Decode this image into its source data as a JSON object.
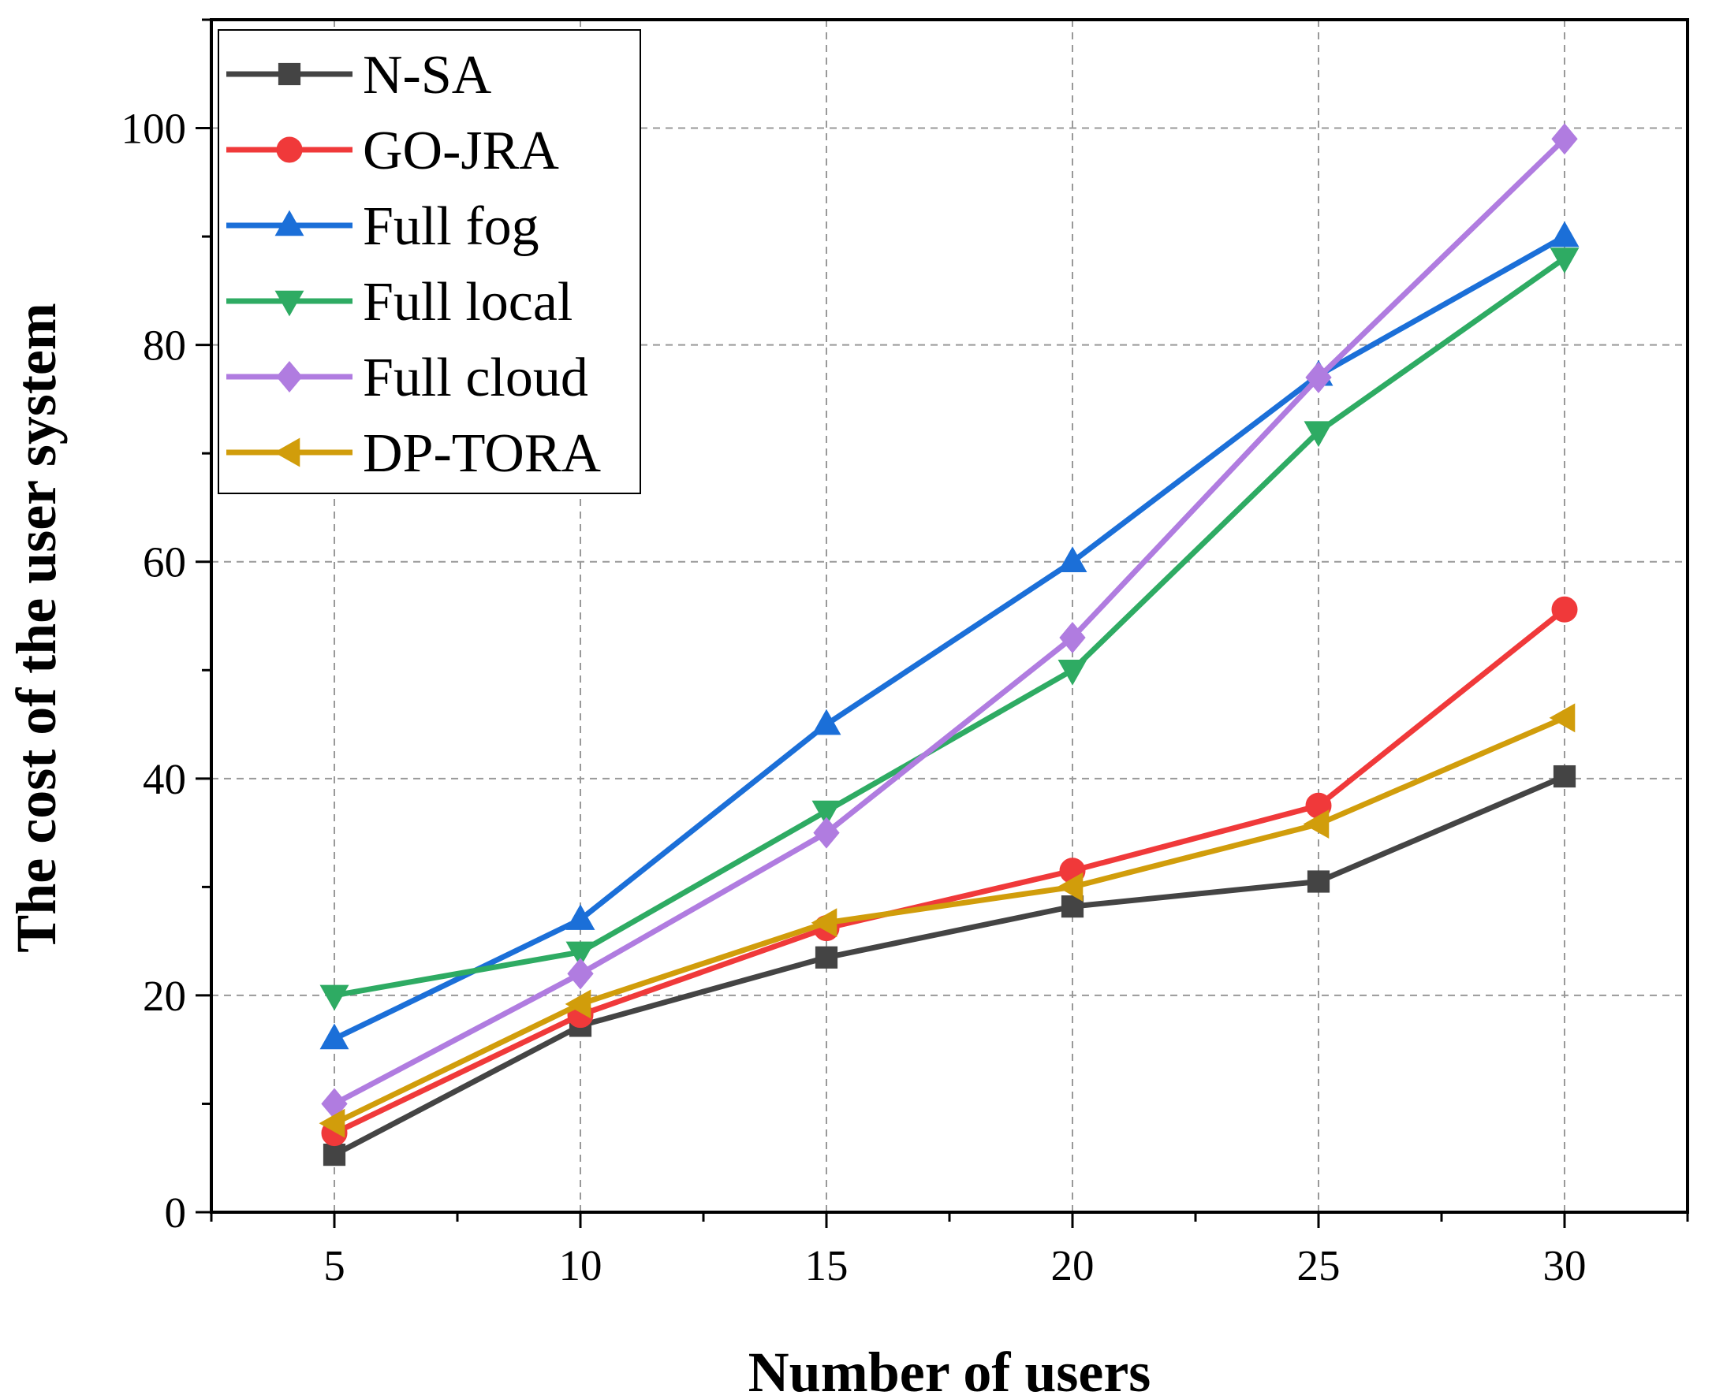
{
  "chart_data": {
    "type": "line",
    "title": "",
    "xlabel": "Number of users",
    "ylabel": "The cost of the user system",
    "x": [
      5,
      10,
      15,
      20,
      25,
      30
    ],
    "xlim": [
      2.5,
      32.5
    ],
    "ylim": [
      0,
      110
    ],
    "xticks": [
      5,
      10,
      15,
      20,
      25,
      30
    ],
    "yticks": [
      0,
      20,
      40,
      60,
      80,
      100
    ],
    "grid": true,
    "legend_position": "top-left",
    "series": [
      {
        "name": "N-SA",
        "color": "#444444",
        "marker": "square",
        "values": [
          5.3,
          17.2,
          23.5,
          28.2,
          30.5,
          40.2
        ]
      },
      {
        "name": "GO-JRA",
        "color": "#f0393a",
        "marker": "circle",
        "values": [
          7.3,
          18.2,
          26.2,
          31.5,
          37.5,
          55.6
        ]
      },
      {
        "name": "Full fog",
        "color": "#1b6fd8",
        "marker": "triangle-up",
        "values": [
          16,
          27,
          45,
          60,
          77.2,
          90
        ]
      },
      {
        "name": "Full local",
        "color": "#2eab63",
        "marker": "triangle-down",
        "values": [
          20,
          24,
          37,
          50,
          72,
          88
        ]
      },
      {
        "name": "Full cloud",
        "color": "#b07ce0",
        "marker": "diamond",
        "values": [
          10,
          22,
          35,
          53,
          77,
          99
        ]
      },
      {
        "name": "DP-TORA",
        "color": "#d19d0b",
        "marker": "triangle-left",
        "values": [
          8.2,
          19.2,
          26.7,
          30,
          35.8,
          45.6
        ]
      }
    ]
  }
}
